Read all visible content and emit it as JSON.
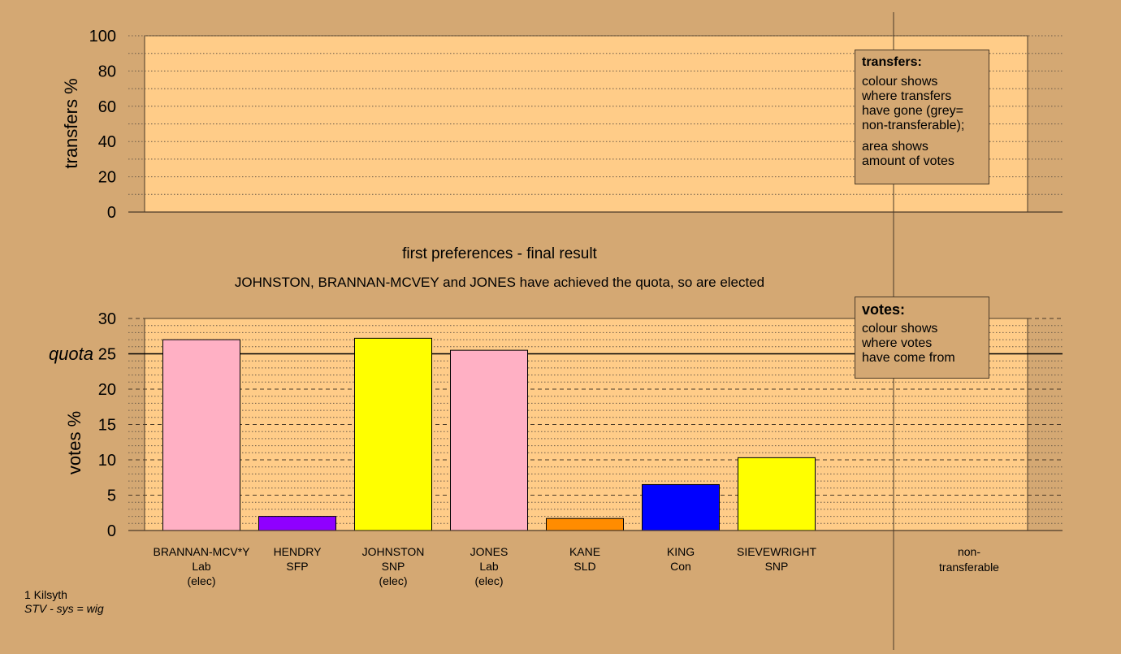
{
  "chart_data": [
    {
      "type": "bar",
      "panel": "transfers",
      "ylabel": "transfers %",
      "ylim": [
        0,
        100
      ],
      "yticks": [
        0,
        20,
        40,
        60,
        80,
        100
      ],
      "grid": true,
      "values": []
    },
    {
      "type": "bar",
      "panel": "votes",
      "title": "first preferences - final result",
      "subtitle": "JOHNSTON, BRANNAN-MCVEY and JONES have achieved the quota, so are elected",
      "ylabel": "votes %",
      "ylim": [
        0,
        30
      ],
      "yticks": [
        0,
        5,
        10,
        15,
        20,
        25,
        30
      ],
      "quota": 25,
      "quota_label": "quota",
      "grid": true,
      "categories": [
        {
          "name": "BRANNAN-MCV*Y",
          "party": "Lab",
          "status": "(elec)"
        },
        {
          "name": "HENDRY",
          "party": "SFP",
          "status": ""
        },
        {
          "name": "JOHNSTON",
          "party": "SNP",
          "status": "(elec)"
        },
        {
          "name": "JONES",
          "party": "Lab",
          "status": "(elec)"
        },
        {
          "name": "KANE",
          "party": "SLD",
          "status": ""
        },
        {
          "name": "KING",
          "party": "Con",
          "status": ""
        },
        {
          "name": "SIEVEWRIGHT",
          "party": "SNP",
          "status": ""
        }
      ],
      "values": [
        27.0,
        2.0,
        27.2,
        25.5,
        1.7,
        6.5,
        10.3
      ],
      "colors": [
        "#ffb0c4",
        "#8f00ff",
        "#ffff00",
        "#ffb0c4",
        "#ff8c00",
        "#0000ff",
        "#ffff00"
      ],
      "nontransferable_label_1": "non-",
      "nontransferable_label_2": "transferable",
      "nontransferable_value": 0
    }
  ],
  "legend_transfers": {
    "title": "transfers:",
    "line1": "colour shows",
    "line2": "where transfers",
    "line3": "have gone (grey=",
    "line4": "non-transferable);",
    "line5": "area shows",
    "line6": "amount of votes"
  },
  "legend_votes": {
    "title": "votes:",
    "line1": "colour shows",
    "line2": "where votes",
    "line3": "have come from"
  },
  "footer": {
    "ward": "1 Kilsyth",
    "system": "STV - sys = wig"
  },
  "colors": {
    "background": "#d4a873",
    "plot_area": "#ffcc88",
    "axis": "#4a3a28"
  }
}
